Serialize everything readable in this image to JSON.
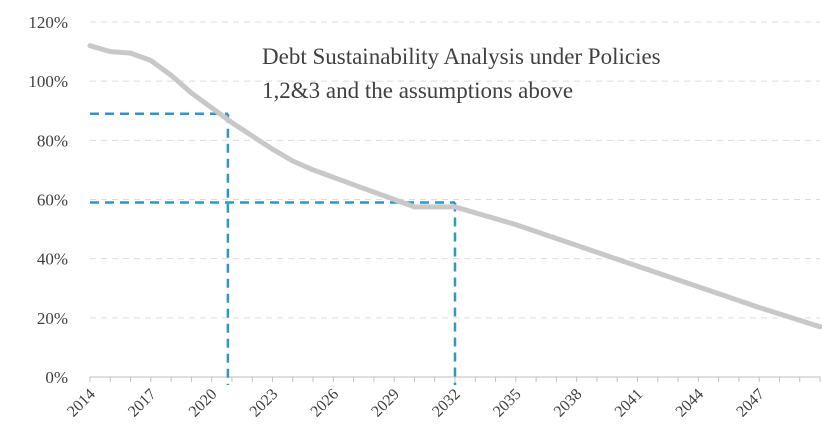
{
  "chart_data": {
    "type": "line",
    "title_lines": [
      "Debt Sustainability Analysis under Policies",
      "1,2&3 and the assumptions above"
    ],
    "xlabel": "",
    "ylabel": "",
    "xlim": [
      2014,
      2050
    ],
    "ylim": [
      0,
      120
    ],
    "y_ticks": [
      "0%",
      "20%",
      "40%",
      "60%",
      "80%",
      "100%",
      "120%"
    ],
    "y_tick_values": [
      0,
      20,
      40,
      60,
      80,
      100,
      120
    ],
    "x_tick_values": [
      2014,
      2017,
      2020,
      2023,
      2026,
      2029,
      2032,
      2035,
      2038,
      2041,
      2044,
      2047
    ],
    "x_ticks": [
      "2014",
      "2017",
      "2020",
      "2023",
      "2026",
      "2029",
      "2032",
      "2035",
      "2038",
      "2041",
      "2044",
      "2047"
    ],
    "grid": true,
    "series": [
      {
        "color": "#c8c8c8",
        "x": [
          2014,
          2015,
          2016,
          2017,
          2018,
          2019,
          2020,
          2021,
          2022,
          2023,
          2024,
          2025,
          2026,
          2028,
          2030,
          2032,
          2035,
          2038,
          2041,
          2044,
          2047,
          2050
        ],
        "y": [
          112,
          110,
          109.5,
          107,
          102,
          96,
          91,
          86,
          81.5,
          77,
          73,
          70,
          67.5,
          62.5,
          57.5,
          57.5,
          51.5,
          44.5,
          37.5,
          30.5,
          23.5,
          17
        ]
      }
    ],
    "reference_lines": [
      {
        "color": "#2e97c3",
        "x": 2020.8,
        "y": 89
      },
      {
        "color": "#2e97c3",
        "x": 2032,
        "y": 59
      }
    ]
  }
}
